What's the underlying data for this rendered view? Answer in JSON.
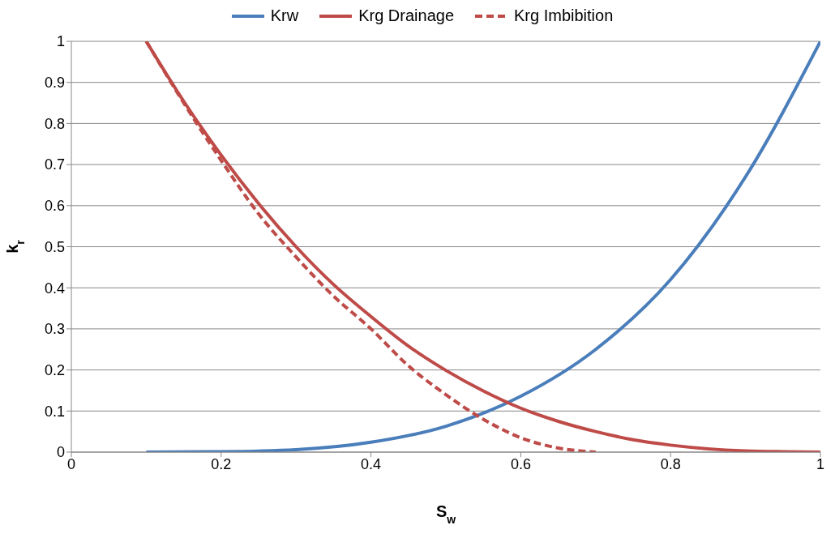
{
  "chart_data": {
    "type": "line",
    "xlabel": "S$_{w}$",
    "ylabel": "k$_{r}$",
    "xlim": [
      0,
      1
    ],
    "xticks": [
      0,
      0.2,
      0.4,
      0.6,
      0.8,
      1
    ],
    "ylim": [
      0,
      1
    ],
    "yticks": [
      0,
      0.1,
      0.2,
      0.3,
      0.4,
      0.5,
      0.6,
      0.7,
      0.8,
      0.9,
      1
    ],
    "grid": "y",
    "legend": "top",
    "marker": "none",
    "series": [
      {
        "name": "Krw",
        "color": "#4a7ebb",
        "x": [
          0.1,
          0.2,
          0.3,
          0.4,
          0.5,
          0.6,
          0.7,
          0.8,
          0.9,
          1
        ],
        "values": [
          0,
          0.001,
          0.006,
          0.024,
          0.063,
          0.136,
          0.25,
          0.42,
          0.67,
          1
        ],
        "line_style": "solid"
      },
      {
        "name": "Krg Drainage",
        "color": "#be4b48",
        "x": [
          0.1,
          0.15,
          0.2,
          0.25,
          0.3,
          0.35,
          0.4,
          0.45,
          0.5,
          0.55,
          0.6,
          0.65,
          0.7,
          0.75,
          0.8,
          0.85,
          0.9,
          0.95,
          1
        ],
        "values": [
          1,
          0.854,
          0.723,
          0.605,
          0.5,
          0.408,
          0.33,
          0.258,
          0.199,
          0.149,
          0.107,
          0.075,
          0.05,
          0.03,
          0.017,
          0.008,
          0.003,
          0.001,
          0
        ],
        "line_style": "solid"
      },
      {
        "name": "Krg Imbibition",
        "color": "#be4b48",
        "x": [
          0.1,
          0.15,
          0.2,
          0.25,
          0.3,
          0.35,
          0.4,
          0.45,
          0.5,
          0.55,
          0.6,
          0.65,
          0.7
        ],
        "values": [
          1,
          0.85,
          0.71,
          0.58,
          0.475,
          0.38,
          0.3,
          0.21,
          0.14,
          0.08,
          0.035,
          0.01,
          0
        ],
        "line_style": "dashed"
      }
    ]
  }
}
